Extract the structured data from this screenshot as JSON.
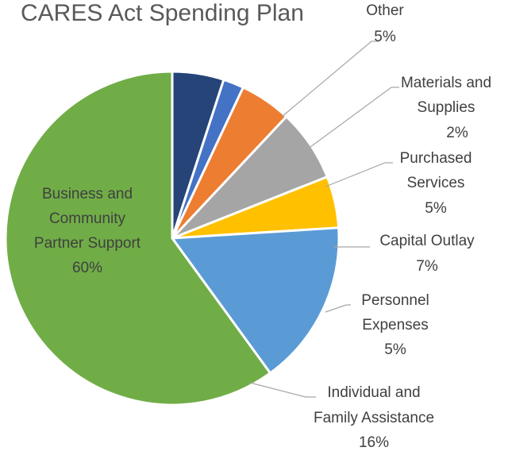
{
  "chart_data": {
    "type": "pie",
    "title": "CARES Act Spending Plan",
    "slices": [
      {
        "label": "Other",
        "value": 5,
        "display": "5%",
        "color": "#264478"
      },
      {
        "label": "Materials and Supplies",
        "value": 2,
        "display": "2%",
        "color": "#4472c4"
      },
      {
        "label": "Purchased Services",
        "value": 5,
        "display": "5%",
        "color": "#ed7d31"
      },
      {
        "label": "Capital Outlay",
        "value": 7,
        "display": "7%",
        "color": "#a5a5a5"
      },
      {
        "label": "Personnel Expenses",
        "value": 5,
        "display": "5%",
        "color": "#ffc000"
      },
      {
        "label": "Individual and Family Assistance",
        "value": 16,
        "display": "16%",
        "color": "#5b9bd5"
      },
      {
        "label": "Business and Community Partner Support",
        "value": 60,
        "display": "60%",
        "color": "#70ad47"
      }
    ]
  }
}
